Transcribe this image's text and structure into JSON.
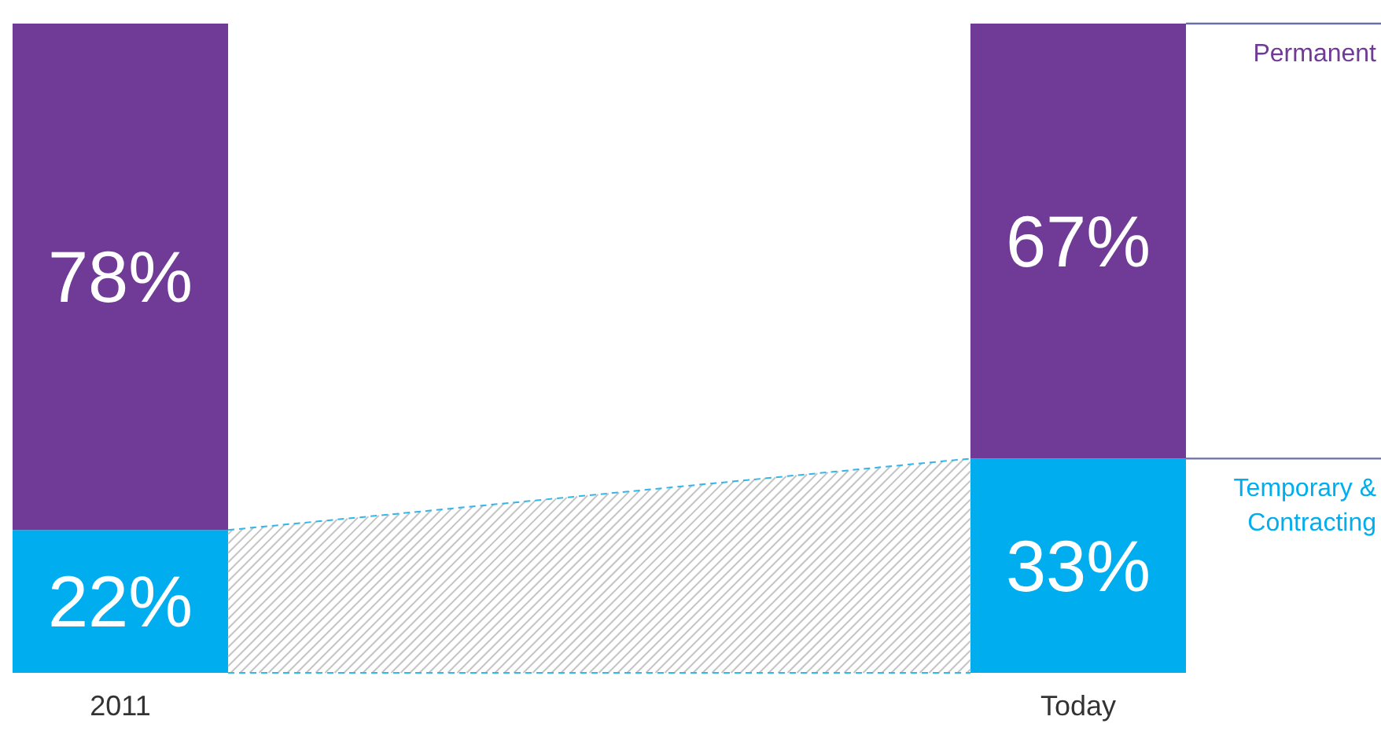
{
  "chart_data": {
    "type": "bar",
    "stacked": true,
    "categories": [
      "2011",
      "Today"
    ],
    "series": [
      {
        "name": "Temporary & Contracting",
        "color": "#00aeef",
        "values": [
          22,
          33
        ],
        "value_labels": [
          "22%",
          "33%"
        ]
      },
      {
        "name": "Permanent",
        "color": "#6f3b96",
        "values": [
          78,
          67
        ],
        "value_labels": [
          "78%",
          "67%"
        ]
      }
    ]
  }
}
